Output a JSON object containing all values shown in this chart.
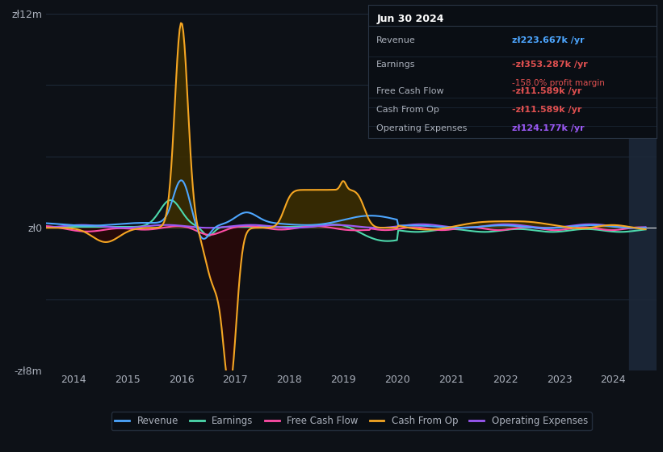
{
  "bg_color": "#0d1117",
  "plot_bg_color": "#0d1117",
  "grid_color": "#1e2a3a",
  "text_color": "#aab0bb",
  "title_box": {
    "date": "Jun 30 2024",
    "rows": [
      {
        "label": "Revenue",
        "value": "zł223.667k /yr",
        "value_color": "#4da6ff",
        "extra": null
      },
      {
        "label": "Earnings",
        "value": "-zł353.287k /yr",
        "value_color": "#e05050",
        "extra": "-158.0% profit margin",
        "extra_color": "#e05050"
      },
      {
        "label": "Free Cash Flow",
        "value": "-zł11.589k /yr",
        "value_color": "#e05050",
        "extra": null
      },
      {
        "label": "Cash From Op",
        "value": "-zł11.589k /yr",
        "value_color": "#e05050",
        "extra": null
      },
      {
        "label": "Operating Expenses",
        "value": "zł124.177k /yr",
        "value_color": "#9b59f5",
        "extra": null
      }
    ]
  },
  "ylim": [
    -8000000,
    12000000
  ],
  "yticks": [
    -8000000,
    0,
    12000000
  ],
  "ytick_labels": [
    "-zł8m",
    "zł0",
    "zł12m"
  ],
  "xlim_start": 2013.5,
  "xlim_end": 2024.8,
  "xtick_years": [
    2014,
    2015,
    2016,
    2017,
    2018,
    2019,
    2020,
    2021,
    2022,
    2023,
    2024
  ],
  "series": {
    "revenue": {
      "color": "#4da6ff",
      "label": "Revenue"
    },
    "earnings": {
      "color": "#4dd9ac",
      "label": "Earnings"
    },
    "free_cash_flow": {
      "color": "#ff4da6",
      "label": "Free Cash Flow"
    },
    "cash_from_op": {
      "color": "#f5a623",
      "label": "Cash From Op",
      "fill_color": "#3d2e00"
    },
    "op_expenses": {
      "color": "#9b59f5",
      "label": "Operating Expenses"
    }
  },
  "shade_region_color": "#1a2535",
  "shade_x_start": 2024.3,
  "shade_x_end": 2024.8
}
